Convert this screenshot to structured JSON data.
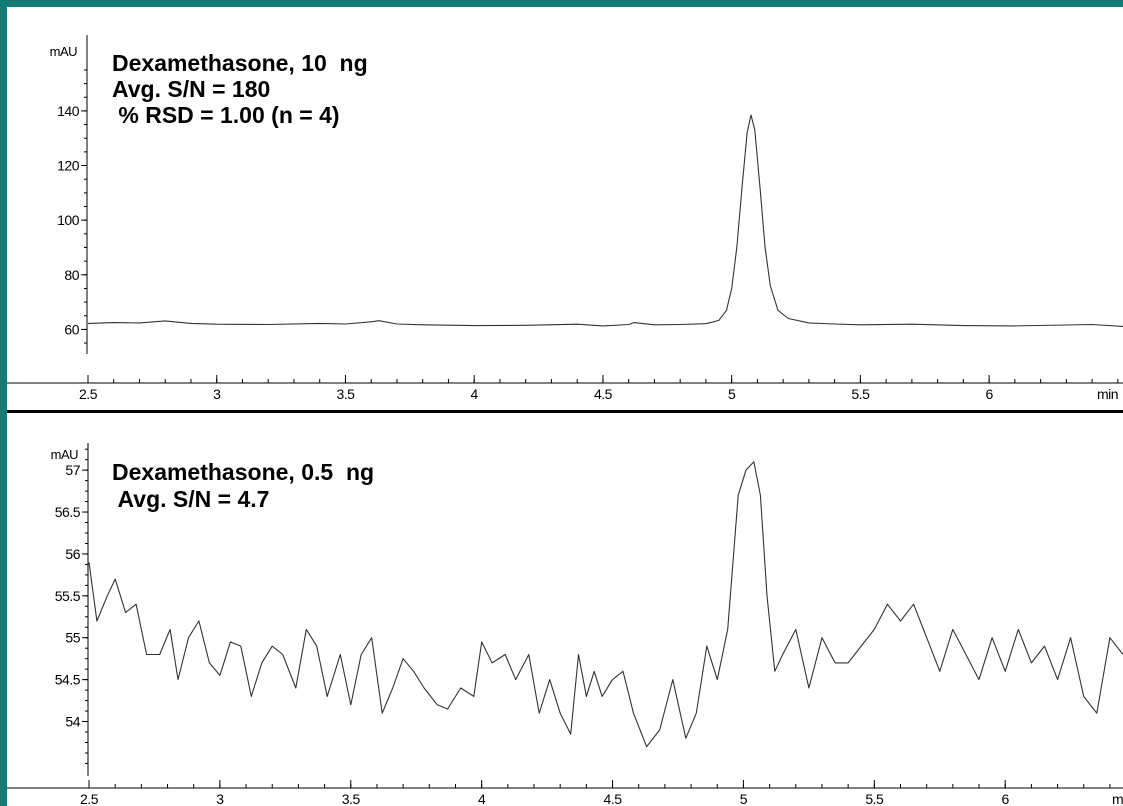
{
  "chart_data": [
    {
      "type": "line",
      "ylabel": "mAU",
      "xlabel": "min",
      "annotations": [
        "Dexamethasone, 10  ng",
        "Avg. S/N = 180",
        " % RSD = 1.00 (n = 4)"
      ],
      "xlim": [
        2.5,
        6.52
      ],
      "ylim": [
        51,
        159
      ],
      "x_ticks": [
        2.5,
        3,
        3.5,
        4,
        4.5,
        5,
        5.5,
        6
      ],
      "x_tick_labels": [
        "2.5",
        "3",
        "3.5",
        "4",
        "4.5",
        "5",
        "5.5",
        "6"
      ],
      "y_ticks": [
        60,
        80,
        100,
        120,
        140
      ],
      "y_tick_labels": [
        "60",
        "80",
        "100",
        "120",
        "140"
      ],
      "series": [
        {
          "x": [
            2.5,
            2.6,
            2.7,
            2.8,
            2.9,
            3.0,
            3.2,
            3.4,
            3.5,
            3.6,
            3.63,
            3.7,
            3.8,
            4.0,
            4.2,
            4.4,
            4.5,
            4.6,
            4.62,
            4.7,
            4.8,
            4.9,
            4.95,
            4.98,
            5.0,
            5.02,
            5.04,
            5.06,
            5.075,
            5.09,
            5.11,
            5.13,
            5.15,
            5.18,
            5.22,
            5.3,
            5.4,
            5.5,
            5.7,
            5.9,
            6.1,
            6.3,
            6.4,
            6.52
          ],
          "y": [
            62.2,
            62.5,
            62.4,
            63.1,
            62.2,
            61.9,
            61.8,
            62.2,
            62.0,
            62.8,
            63.2,
            62.0,
            61.7,
            61.4,
            61.5,
            61.9,
            61.3,
            61.8,
            62.5,
            61.7,
            61.8,
            62.1,
            63.3,
            67.0,
            75.0,
            90.0,
            112.0,
            132.0,
            138.5,
            133.0,
            112.0,
            90.0,
            76.0,
            67.0,
            64.0,
            62.4,
            62.0,
            61.7,
            61.9,
            61.4,
            61.3,
            61.6,
            61.8,
            61.1
          ]
        }
      ]
    },
    {
      "type": "line",
      "ylabel": "mAU",
      "xlabel": "min",
      "annotations": [
        "Dexamethasone, 0.5  ng",
        " Avg. S/N = 4.7"
      ],
      "xlim": [
        2.5,
        6.45
      ],
      "ylim": [
        53.35,
        57.3
      ],
      "x_ticks": [
        2.5,
        3,
        3.5,
        4,
        4.5,
        5,
        5.5,
        6
      ],
      "x_tick_labels": [
        "2.5",
        "3",
        "3.5",
        "4",
        "4.5",
        "5",
        "5.5",
        "6"
      ],
      "y_ticks": [
        54,
        54.5,
        55,
        55.5,
        56,
        56.5,
        57
      ],
      "y_tick_labels": [
        "54",
        "54.5",
        "55",
        "55.5",
        "56",
        "56.5",
        "57"
      ],
      "series": [
        {
          "x": [
            2.5,
            2.53,
            2.57,
            2.6,
            2.64,
            2.68,
            2.72,
            2.77,
            2.81,
            2.84,
            2.88,
            2.92,
            2.96,
            3.0,
            3.04,
            3.08,
            3.12,
            3.16,
            3.2,
            3.24,
            3.29,
            3.33,
            3.37,
            3.41,
            3.46,
            3.5,
            3.54,
            3.58,
            3.62,
            3.66,
            3.7,
            3.74,
            3.78,
            3.83,
            3.87,
            3.92,
            3.97,
            4.0,
            4.04,
            4.09,
            4.13,
            4.18,
            4.22,
            4.26,
            4.3,
            4.34,
            4.37,
            4.4,
            4.43,
            4.46,
            4.5,
            4.54,
            4.58,
            4.63,
            4.68,
            4.73,
            4.78,
            4.82,
            4.86,
            4.9,
            4.94,
            4.98,
            5.01,
            5.04,
            5.065,
            5.09,
            5.12,
            5.15,
            5.2,
            5.25,
            5.3,
            5.35,
            5.4,
            5.45,
            5.5,
            5.55,
            5.6,
            5.65,
            5.7,
            5.75,
            5.8,
            5.85,
            5.9,
            5.95,
            6.0,
            6.05,
            6.1,
            6.15,
            6.2,
            6.25,
            6.3,
            6.35,
            6.4,
            6.45
          ],
          "y": [
            55.9,
            55.2,
            55.5,
            55.7,
            55.3,
            55.4,
            54.8,
            54.8,
            55.1,
            54.5,
            55.0,
            55.2,
            54.7,
            54.55,
            54.95,
            54.9,
            54.3,
            54.7,
            54.9,
            54.8,
            54.4,
            55.1,
            54.9,
            54.3,
            54.8,
            54.2,
            54.8,
            55.0,
            54.1,
            54.4,
            54.75,
            54.6,
            54.4,
            54.2,
            54.15,
            54.4,
            54.3,
            54.95,
            54.7,
            54.8,
            54.5,
            54.8,
            54.1,
            54.5,
            54.1,
            53.85,
            54.8,
            54.3,
            54.6,
            54.3,
            54.5,
            54.6,
            54.1,
            53.7,
            53.9,
            54.5,
            53.8,
            54.1,
            54.9,
            54.5,
            55.1,
            56.7,
            57.0,
            57.1,
            56.7,
            55.5,
            54.6,
            54.8,
            55.1,
            54.4,
            55.0,
            54.7,
            54.7,
            54.9,
            55.1,
            55.4,
            55.2,
            55.4,
            55.0,
            54.6,
            55.1,
            54.8,
            54.5,
            55.0,
            54.6,
            55.1,
            54.7,
            54.9,
            54.5,
            55.0,
            54.3,
            54.1,
            55.0,
            54.8
          ]
        }
      ]
    }
  ]
}
